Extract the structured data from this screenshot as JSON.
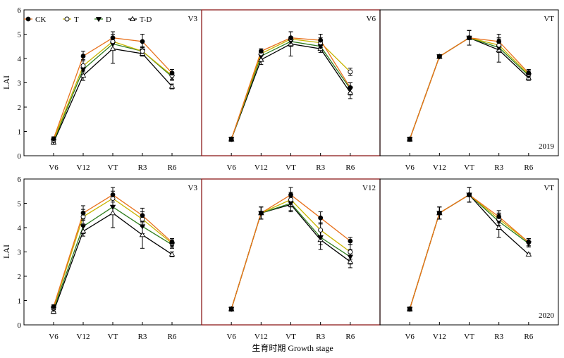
{
  "figure": {
    "xlabel": "生育时期 Growth stage",
    "ylabel": "LAI"
  },
  "legend": [
    {
      "name": "CK",
      "color": "#e8711c",
      "marker": "circle-filled"
    },
    {
      "name": "T",
      "color": "#c8b400",
      "marker": "circle-open"
    },
    {
      "name": "D",
      "color": "#2e7d1e",
      "marker": "triangle-down-filled"
    },
    {
      "name": "T-D",
      "color": "#000000",
      "marker": "triangle-up-open"
    }
  ],
  "chart_data": [
    {
      "type": "line",
      "panel_label": "V3",
      "year_label": "",
      "highlighted": false,
      "categories": [
        "V6",
        "V12",
        "VT",
        "R3",
        "R6"
      ],
      "ylim": [
        0,
        6
      ],
      "yticks": [
        0,
        1,
        2,
        3,
        4,
        5,
        6
      ],
      "series": [
        {
          "name": "CK",
          "values": [
            0.7,
            4.1,
            4.85,
            4.7,
            3.4
          ],
          "errors": [
            0.08,
            0.2,
            0.25,
            0.3,
            0.15
          ]
        },
        {
          "name": "T",
          "values": [
            0.65,
            3.7,
            4.7,
            4.3,
            3.3
          ],
          "errors": [
            0.08,
            0.25,
            0.3,
            0.2,
            0.15
          ]
        },
        {
          "name": "D",
          "values": [
            0.6,
            3.55,
            4.6,
            4.3,
            3.25
          ],
          "errors": [
            0.08,
            0.2,
            0.25,
            0.15,
            0.15
          ]
        },
        {
          "name": "T-D",
          "values": [
            0.55,
            3.3,
            4.4,
            4.2,
            2.85
          ],
          "errors": [
            0.08,
            0.2,
            0.6,
            0.1,
            0.1
          ]
        }
      ]
    },
    {
      "type": "line",
      "panel_label": "V6",
      "year_label": "",
      "highlighted": true,
      "categories": [
        "V6",
        "V12",
        "VT",
        "R3",
        "R6"
      ],
      "ylim": [
        0,
        6
      ],
      "yticks": [
        0,
        1,
        2,
        3,
        4,
        5,
        6
      ],
      "series": [
        {
          "name": "CK",
          "values": [
            0.68,
            4.3,
            4.85,
            4.75,
            2.8
          ],
          "errors": [
            0.08,
            0.1,
            0.25,
            0.25,
            0.2
          ]
        },
        {
          "name": "T",
          "values": [
            0.68,
            4.2,
            4.8,
            4.65,
            3.45
          ],
          "errors": [
            0.08,
            0.1,
            0.3,
            0.2,
            0.15
          ]
        },
        {
          "name": "D",
          "values": [
            0.68,
            4.1,
            4.7,
            4.5,
            2.75
          ],
          "errors": [
            0.08,
            0.15,
            0.2,
            0.15,
            0.25
          ]
        },
        {
          "name": "T-D",
          "values": [
            0.68,
            3.95,
            4.6,
            4.4,
            2.6
          ],
          "errors": [
            0.08,
            0.2,
            0.5,
            0.15,
            0.25
          ]
        }
      ]
    },
    {
      "type": "line",
      "panel_label": "VT",
      "year_label": "2019",
      "highlighted": false,
      "categories": [
        "V6",
        "V12",
        "VT",
        "R3",
        "R6"
      ],
      "ylim": [
        0,
        6
      ],
      "yticks": [
        0,
        1,
        2,
        3,
        4,
        5,
        6
      ],
      "series": [
        {
          "name": "CK",
          "values": [
            0.68,
            4.08,
            4.85,
            4.7,
            3.4
          ],
          "errors": [
            0.08,
            0.08,
            0.3,
            0.3,
            0.15
          ]
        },
        {
          "name": "T",
          "values": [
            0.68,
            4.08,
            4.85,
            4.55,
            3.35
          ],
          "errors": [
            0.08,
            0.08,
            0.3,
            0.25,
            0.15
          ]
        },
        {
          "name": "D",
          "values": [
            0.68,
            4.08,
            4.85,
            4.45,
            3.3
          ],
          "errors": [
            0.08,
            0.08,
            0.3,
            0.2,
            0.15
          ]
        },
        {
          "name": "T-D",
          "values": [
            0.68,
            4.08,
            4.85,
            4.35,
            3.2
          ],
          "errors": [
            0.08,
            0.08,
            0.3,
            0.5,
            0.1
          ]
        }
      ]
    },
    {
      "type": "line",
      "panel_label": "V3",
      "year_label": "",
      "highlighted": false,
      "categories": [
        "V6",
        "V12",
        "VT",
        "R3",
        "R6"
      ],
      "ylim": [
        0,
        6
      ],
      "yticks": [
        0,
        1,
        2,
        3,
        4,
        5,
        6
      ],
      "series": [
        {
          "name": "CK",
          "values": [
            0.75,
            4.6,
            5.35,
            4.5,
            3.4
          ],
          "errors": [
            0.08,
            0.3,
            0.3,
            0.3,
            0.15
          ]
        },
        {
          "name": "T",
          "values": [
            0.7,
            4.45,
            5.2,
            4.35,
            3.35
          ],
          "errors": [
            0.08,
            0.3,
            0.3,
            0.3,
            0.15
          ]
        },
        {
          "name": "D",
          "values": [
            0.65,
            4.05,
            4.85,
            4.05,
            3.3
          ],
          "errors": [
            0.08,
            0.3,
            0.3,
            0.3,
            0.15
          ]
        },
        {
          "name": "T-D",
          "values": [
            0.55,
            3.85,
            4.6,
            3.7,
            2.9
          ],
          "errors": [
            0.08,
            0.2,
            0.6,
            0.55,
            0.1
          ]
        }
      ]
    },
    {
      "type": "line",
      "panel_label": "V12",
      "year_label": "",
      "highlighted": true,
      "categories": [
        "V6",
        "V12",
        "VT",
        "R3",
        "R6"
      ],
      "ylim": [
        0,
        6
      ],
      "yticks": [
        0,
        1,
        2,
        3,
        4,
        5,
        6
      ],
      "series": [
        {
          "name": "CK",
          "values": [
            0.65,
            4.6,
            5.35,
            4.4,
            3.45
          ],
          "errors": [
            0.08,
            0.25,
            0.3,
            0.25,
            0.15
          ]
        },
        {
          "name": "T",
          "values": [
            0.65,
            4.6,
            5.15,
            3.9,
            3.0
          ],
          "errors": [
            0.08,
            0.25,
            0.3,
            0.3,
            0.3
          ]
        },
        {
          "name": "D",
          "values": [
            0.65,
            4.6,
            5.0,
            3.6,
            2.8
          ],
          "errors": [
            0.08,
            0.25,
            0.3,
            0.3,
            0.3
          ]
        },
        {
          "name": "T-D",
          "values": [
            0.65,
            4.6,
            4.95,
            3.5,
            2.6
          ],
          "errors": [
            0.08,
            0.25,
            0.3,
            0.4,
            0.25
          ]
        }
      ]
    },
    {
      "type": "line",
      "panel_label": "VT",
      "year_label": "2020",
      "highlighted": false,
      "categories": [
        "V6",
        "V12",
        "VT",
        "R3",
        "R6"
      ],
      "ylim": [
        0,
        6
      ],
      "yticks": [
        0,
        1,
        2,
        3,
        4,
        5,
        6
      ],
      "series": [
        {
          "name": "CK",
          "values": [
            0.65,
            4.6,
            5.35,
            4.45,
            3.4
          ],
          "errors": [
            0.08,
            0.25,
            0.3,
            0.25,
            0.15
          ]
        },
        {
          "name": "T",
          "values": [
            0.65,
            4.6,
            5.35,
            4.35,
            3.4
          ],
          "errors": [
            0.08,
            0.25,
            0.3,
            0.25,
            0.15
          ]
        },
        {
          "name": "D",
          "values": [
            0.65,
            4.6,
            5.35,
            4.25,
            3.35
          ],
          "errors": [
            0.08,
            0.25,
            0.3,
            0.3,
            0.15
          ]
        },
        {
          "name": "T-D",
          "values": [
            0.65,
            4.6,
            5.35,
            4.0,
            2.9
          ],
          "errors": [
            0.08,
            0.25,
            0.3,
            0.4,
            0.05
          ]
        }
      ]
    }
  ]
}
